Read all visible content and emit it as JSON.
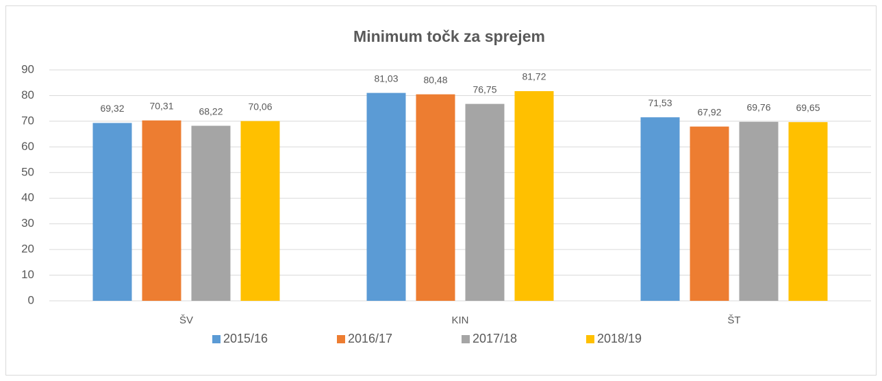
{
  "chart_data": {
    "type": "bar",
    "title": "Minimum točk za sprejem",
    "categories": [
      "ŠV",
      "KIN",
      "ŠT"
    ],
    "series": [
      {
        "name": "2015/16",
        "color": "#5b9bd5",
        "values": [
          69.32,
          81.03,
          71.53
        ],
        "value_labels": [
          "69,32",
          "81,03",
          "71,53"
        ]
      },
      {
        "name": "2016/17",
        "color": "#ed7d31",
        "values": [
          70.31,
          80.48,
          67.92
        ],
        "value_labels": [
          "70,31",
          "80,48",
          "67,92"
        ]
      },
      {
        "name": "2017/18",
        "color": "#a5a5a5",
        "values": [
          68.22,
          76.75,
          69.76
        ],
        "value_labels": [
          "68,22",
          "76,75",
          "69,76"
        ]
      },
      {
        "name": "2018/19",
        "color": "#ffc000",
        "values": [
          70.06,
          81.72,
          69.65
        ],
        "value_labels": [
          "70,06",
          "81,72",
          "69,65"
        ]
      }
    ],
    "ylim": [
      0,
      90
    ],
    "yticks": [
      0,
      10,
      20,
      30,
      40,
      50,
      60,
      70,
      80,
      90
    ],
    "grid": true,
    "legend": "bottom"
  }
}
